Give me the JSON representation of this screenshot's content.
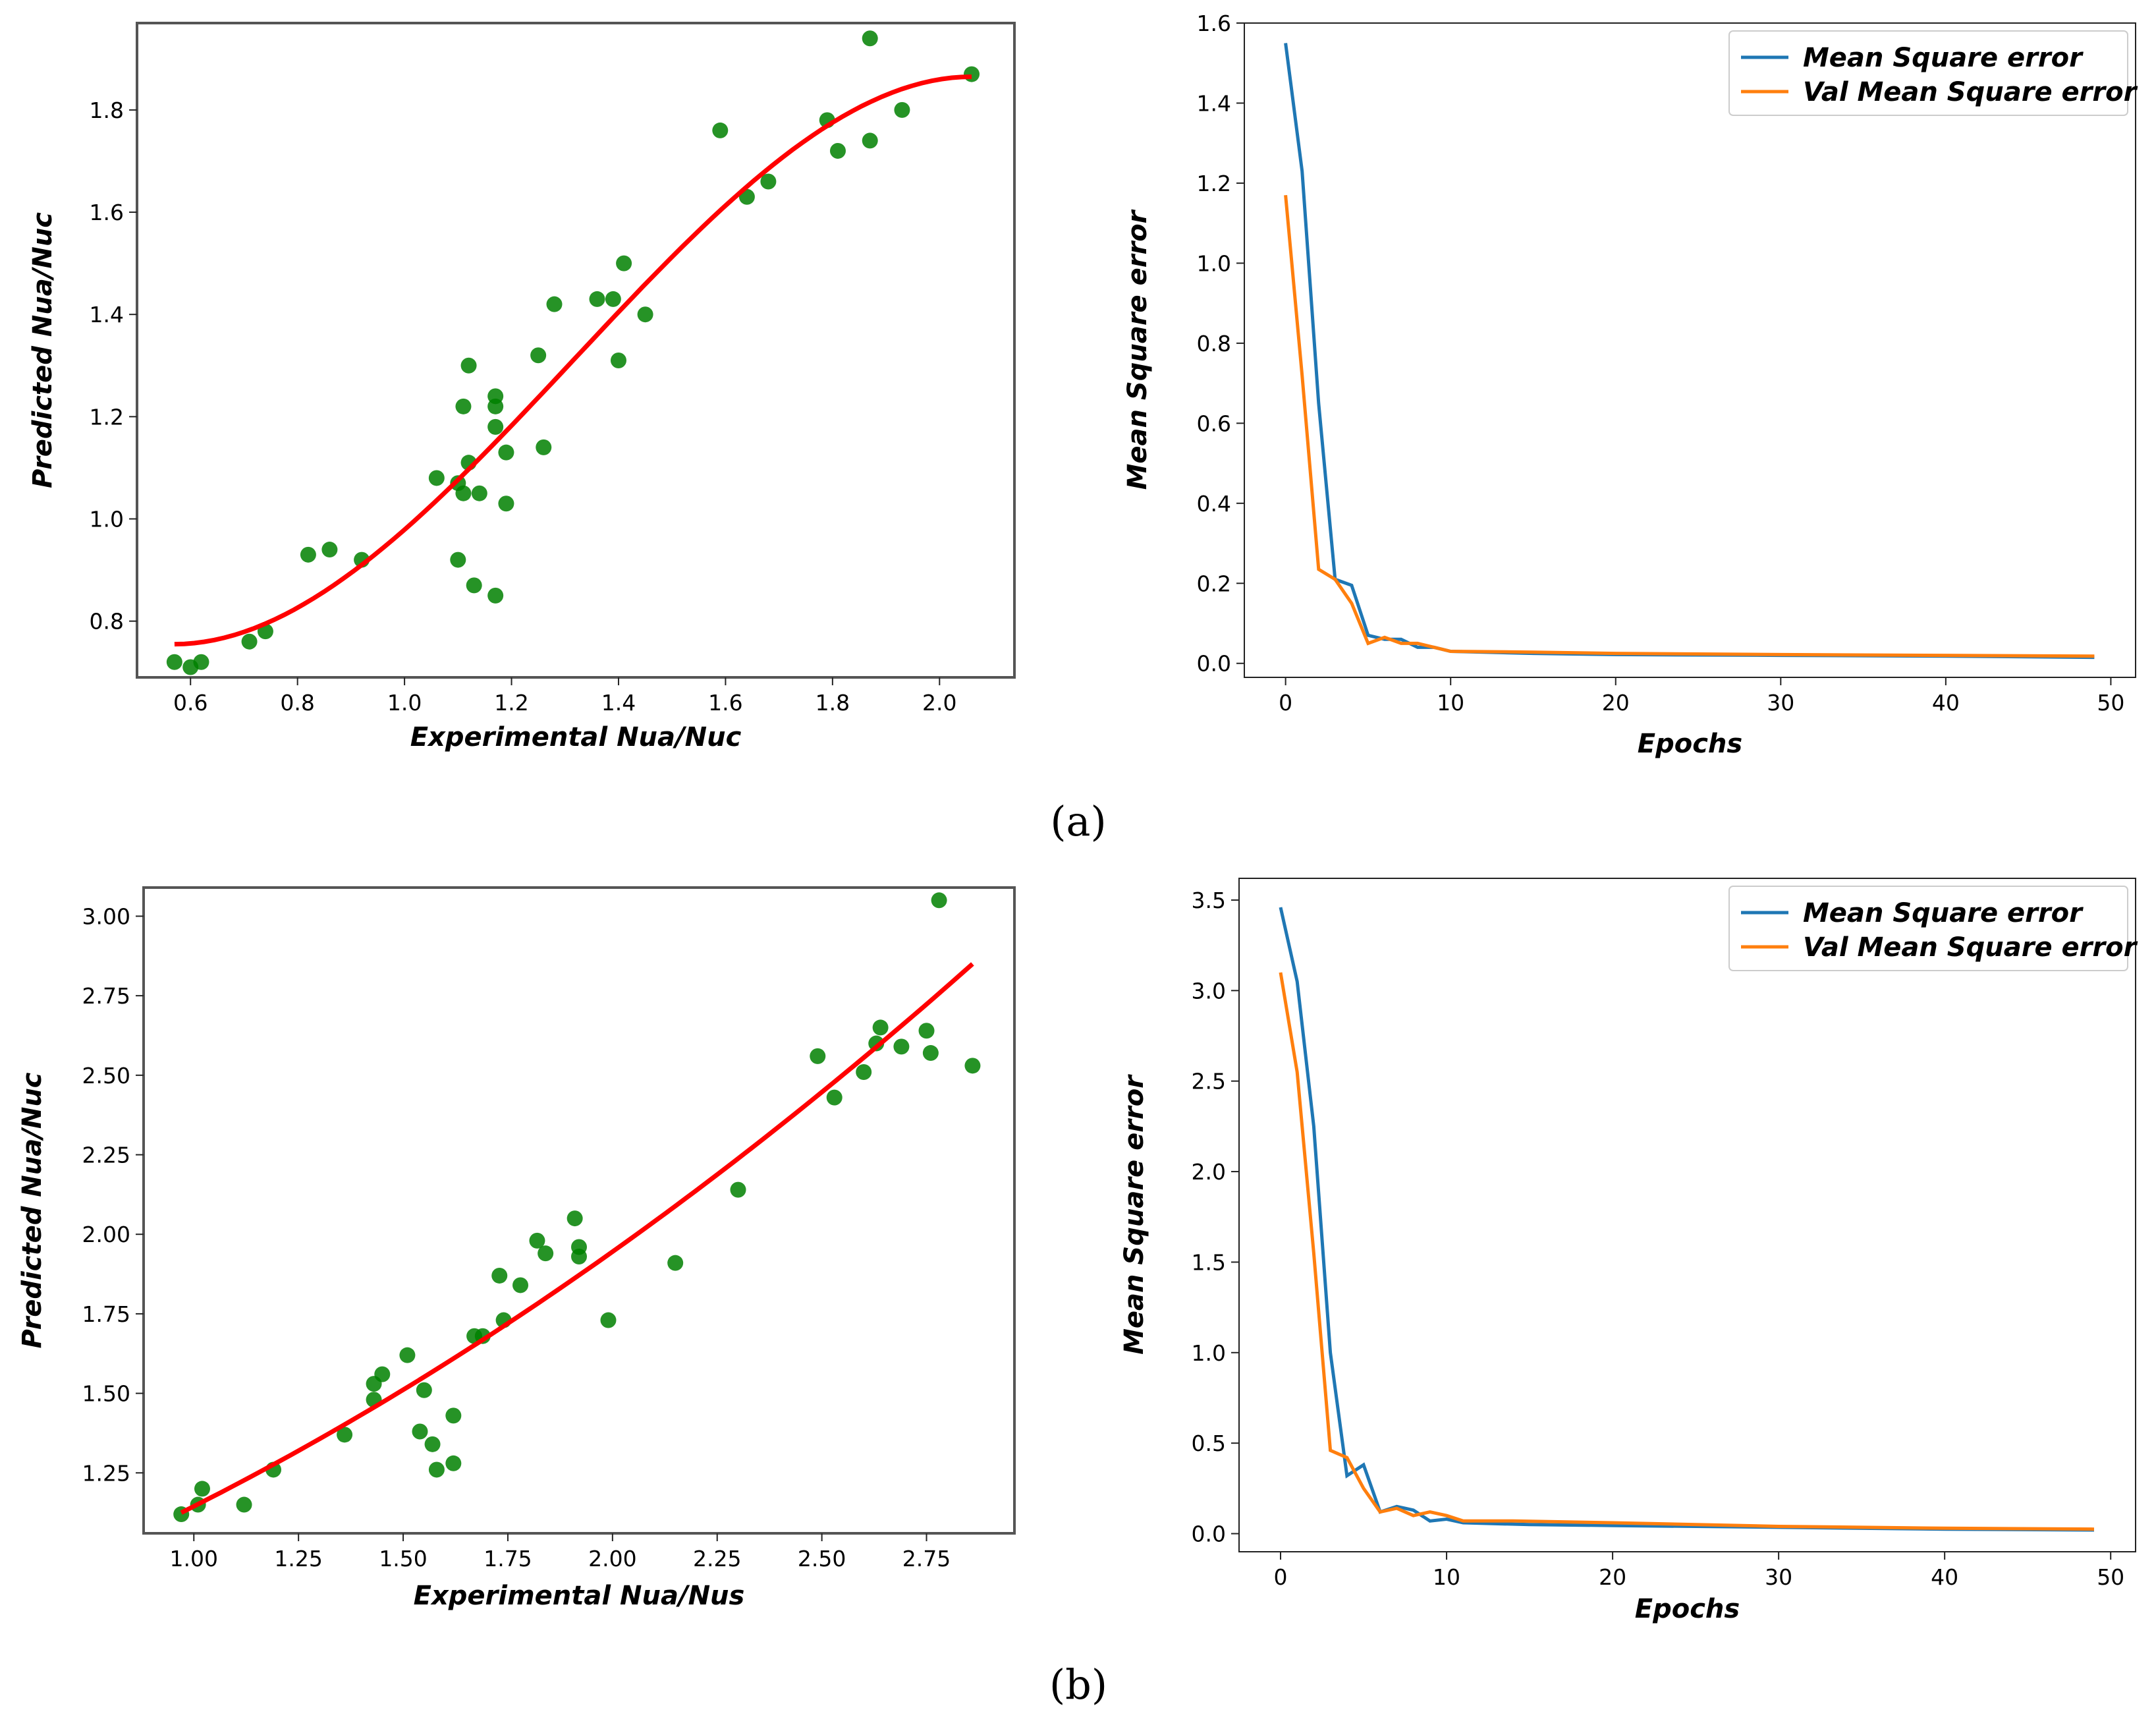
{
  "panel_labels": [
    "(a)",
    "(b)"
  ],
  "colors": {
    "scatter": "#008000",
    "fit": "#ff0000",
    "train": "#1f77b4",
    "val": "#ff7f0e"
  },
  "chart_data": [
    {
      "id": "a-scatter",
      "type": "scatter",
      "title": "",
      "xlabel": "Experimental Nua/Nuc",
      "ylabel": "Predicted Nua/Nuc",
      "xlim": [
        0.5,
        2.14
      ],
      "ylim": [
        0.69,
        1.97
      ],
      "xticks": [
        "0.6",
        "0.8",
        "1.0",
        "1.2",
        "1.4",
        "1.6",
        "1.8",
        "2.0"
      ],
      "yticks": [
        "0.8",
        "1.0",
        "1.2",
        "1.4",
        "1.6",
        "1.8"
      ],
      "points": [
        [
          0.57,
          0.72
        ],
        [
          0.6,
          0.71
        ],
        [
          0.62,
          0.72
        ],
        [
          0.71,
          0.76
        ],
        [
          0.74,
          0.78
        ],
        [
          0.82,
          0.93
        ],
        [
          0.86,
          0.94
        ],
        [
          0.92,
          0.92
        ],
        [
          1.06,
          1.08
        ],
        [
          1.1,
          1.07
        ],
        [
          1.1,
          0.92
        ],
        [
          1.11,
          1.22
        ],
        [
          1.11,
          1.05
        ],
        [
          1.12,
          1.3
        ],
        [
          1.12,
          1.11
        ],
        [
          1.13,
          0.87
        ],
        [
          1.14,
          1.05
        ],
        [
          1.17,
          0.85
        ],
        [
          1.17,
          1.24
        ],
        [
          1.17,
          1.22
        ],
        [
          1.17,
          1.18
        ],
        [
          1.19,
          1.13
        ],
        [
          1.19,
          1.03
        ],
        [
          1.25,
          1.32
        ],
        [
          1.26,
          1.14
        ],
        [
          1.28,
          1.42
        ],
        [
          1.36,
          1.43
        ],
        [
          1.39,
          1.43
        ],
        [
          1.4,
          1.31
        ],
        [
          1.41,
          1.5
        ],
        [
          1.45,
          1.4
        ],
        [
          1.59,
          1.76
        ],
        [
          1.64,
          1.63
        ],
        [
          1.68,
          1.66
        ],
        [
          1.79,
          1.78
        ],
        [
          1.81,
          1.72
        ],
        [
          1.87,
          1.94
        ],
        [
          1.87,
          1.74
        ],
        [
          1.93,
          1.8
        ],
        [
          2.06,
          1.87
        ]
      ],
      "fit": {
        "x0": 0.57,
        "x1": 2.06,
        "y0": 0.755,
        "y1": 1.865
      }
    },
    {
      "id": "a-loss",
      "type": "line",
      "title": "",
      "xlabel": "Epochs",
      "ylabel": "Mean Square error",
      "xlim": [
        -2.5,
        51.5
      ],
      "ylim": [
        -0.035,
        1.6
      ],
      "xticks": [
        "0",
        "10",
        "20",
        "30",
        "40",
        "50"
      ],
      "yticks": [
        "0.0",
        "0.2",
        "0.4",
        "0.6",
        "0.8",
        "1.0",
        "1.2",
        "1.4",
        "1.6"
      ],
      "legend_position": "top-right",
      "series": [
        {
          "name": "Mean Square error",
          "points": [
            [
              0,
              1.55
            ],
            [
              1,
              1.23
            ],
            [
              2,
              0.65
            ],
            [
              3,
              0.21
            ],
            [
              4,
              0.195
            ],
            [
              5,
              0.07
            ],
            [
              6,
              0.06
            ],
            [
              7,
              0.06
            ],
            [
              8,
              0.04
            ],
            [
              9,
              0.04
            ],
            [
              10,
              0.03
            ],
            [
              15,
              0.025
            ],
            [
              20,
              0.022
            ],
            [
              30,
              0.02
            ],
            [
              40,
              0.018
            ],
            [
              49,
              0.015
            ]
          ]
        },
        {
          "name": "Val Mean Square error",
          "points": [
            [
              0,
              1.17
            ],
            [
              1,
              0.72
            ],
            [
              2,
              0.235
            ],
            [
              3,
              0.21
            ],
            [
              4,
              0.15
            ],
            [
              5,
              0.05
            ],
            [
              6,
              0.065
            ],
            [
              7,
              0.05
            ],
            [
              8,
              0.05
            ],
            [
              9,
              0.04
            ],
            [
              10,
              0.03
            ],
            [
              15,
              0.028
            ],
            [
              20,
              0.025
            ],
            [
              30,
              0.022
            ],
            [
              40,
              0.02
            ],
            [
              49,
              0.018
            ]
          ]
        }
      ]
    },
    {
      "id": "b-scatter",
      "type": "scatter",
      "title": "",
      "xlabel": "Experimental Nua/Nus",
      "ylabel": "Predicted Nua/Nuc",
      "xlim": [
        0.88,
        2.96
      ],
      "ylim": [
        1.06,
        3.09
      ],
      "xticks": [
        "1.00",
        "1.25",
        "1.50",
        "1.75",
        "2.00",
        "2.25",
        "2.50",
        "2.75"
      ],
      "yticks": [
        "1.25",
        "1.50",
        "1.75",
        "2.00",
        "2.25",
        "2.50",
        "2.75",
        "3.00"
      ],
      "points": [
        [
          0.97,
          1.12
        ],
        [
          1.01,
          1.15
        ],
        [
          1.02,
          1.2
        ],
        [
          1.12,
          1.15
        ],
        [
          1.19,
          1.26
        ],
        [
          1.36,
          1.37
        ],
        [
          1.43,
          1.48
        ],
        [
          1.43,
          1.53
        ],
        [
          1.45,
          1.56
        ],
        [
          1.51,
          1.62
        ],
        [
          1.54,
          1.38
        ],
        [
          1.55,
          1.51
        ],
        [
          1.57,
          1.34
        ],
        [
          1.58,
          1.26
        ],
        [
          1.62,
          1.28
        ],
        [
          1.62,
          1.43
        ],
        [
          1.67,
          1.68
        ],
        [
          1.69,
          1.68
        ],
        [
          1.73,
          1.87
        ],
        [
          1.74,
          1.73
        ],
        [
          1.78,
          1.84
        ],
        [
          1.82,
          1.98
        ],
        [
          1.84,
          1.94
        ],
        [
          1.91,
          2.05
        ],
        [
          1.92,
          1.96
        ],
        [
          1.92,
          1.93
        ],
        [
          1.99,
          1.73
        ],
        [
          2.15,
          1.91
        ],
        [
          2.3,
          2.14
        ],
        [
          2.49,
          2.56
        ],
        [
          2.53,
          2.43
        ],
        [
          2.6,
          2.51
        ],
        [
          2.63,
          2.6
        ],
        [
          2.64,
          2.65
        ],
        [
          2.69,
          2.59
        ],
        [
          2.75,
          2.64
        ],
        [
          2.76,
          2.57
        ],
        [
          2.78,
          3.05
        ],
        [
          2.86,
          2.53
        ]
      ],
      "fit": {
        "x0": 0.97,
        "x1": 2.86,
        "y0": 1.125,
        "y1": 2.85
      }
    },
    {
      "id": "b-loss",
      "type": "line",
      "title": "",
      "xlabel": "Epochs",
      "ylabel": "Mean Square error",
      "xlim": [
        -2.5,
        51.5
      ],
      "ylim": [
        -0.1,
        3.62
      ],
      "xticks": [
        "0",
        "10",
        "20",
        "30",
        "40",
        "50"
      ],
      "yticks": [
        "0.0",
        "0.5",
        "1.0",
        "1.5",
        "2.0",
        "2.5",
        "3.0",
        "3.5"
      ],
      "legend_position": "top-right",
      "series": [
        {
          "name": "Mean Square error",
          "points": [
            [
              0,
              3.46
            ],
            [
              1,
              3.05
            ],
            [
              2,
              2.25
            ],
            [
              3,
              1.0
            ],
            [
              4,
              0.32
            ],
            [
              5,
              0.38
            ],
            [
              6,
              0.12
            ],
            [
              7,
              0.15
            ],
            [
              8,
              0.13
            ],
            [
              9,
              0.07
            ],
            [
              10,
              0.08
            ],
            [
              11,
              0.06
            ],
            [
              15,
              0.05
            ],
            [
              20,
              0.045
            ],
            [
              30,
              0.035
            ],
            [
              40,
              0.025
            ],
            [
              49,
              0.02
            ]
          ]
        },
        {
          "name": "Val Mean Square error",
          "points": [
            [
              0,
              3.1
            ],
            [
              1,
              2.55
            ],
            [
              2,
              1.55
            ],
            [
              3,
              0.46
            ],
            [
              4,
              0.42
            ],
            [
              5,
              0.25
            ],
            [
              6,
              0.12
            ],
            [
              7,
              0.14
            ],
            [
              8,
              0.1
            ],
            [
              9,
              0.12
            ],
            [
              10,
              0.1
            ],
            [
              11,
              0.07
            ],
            [
              14,
              0.07
            ],
            [
              20,
              0.06
            ],
            [
              30,
              0.04
            ],
            [
              40,
              0.03
            ],
            [
              49,
              0.025
            ]
          ]
        }
      ]
    }
  ]
}
